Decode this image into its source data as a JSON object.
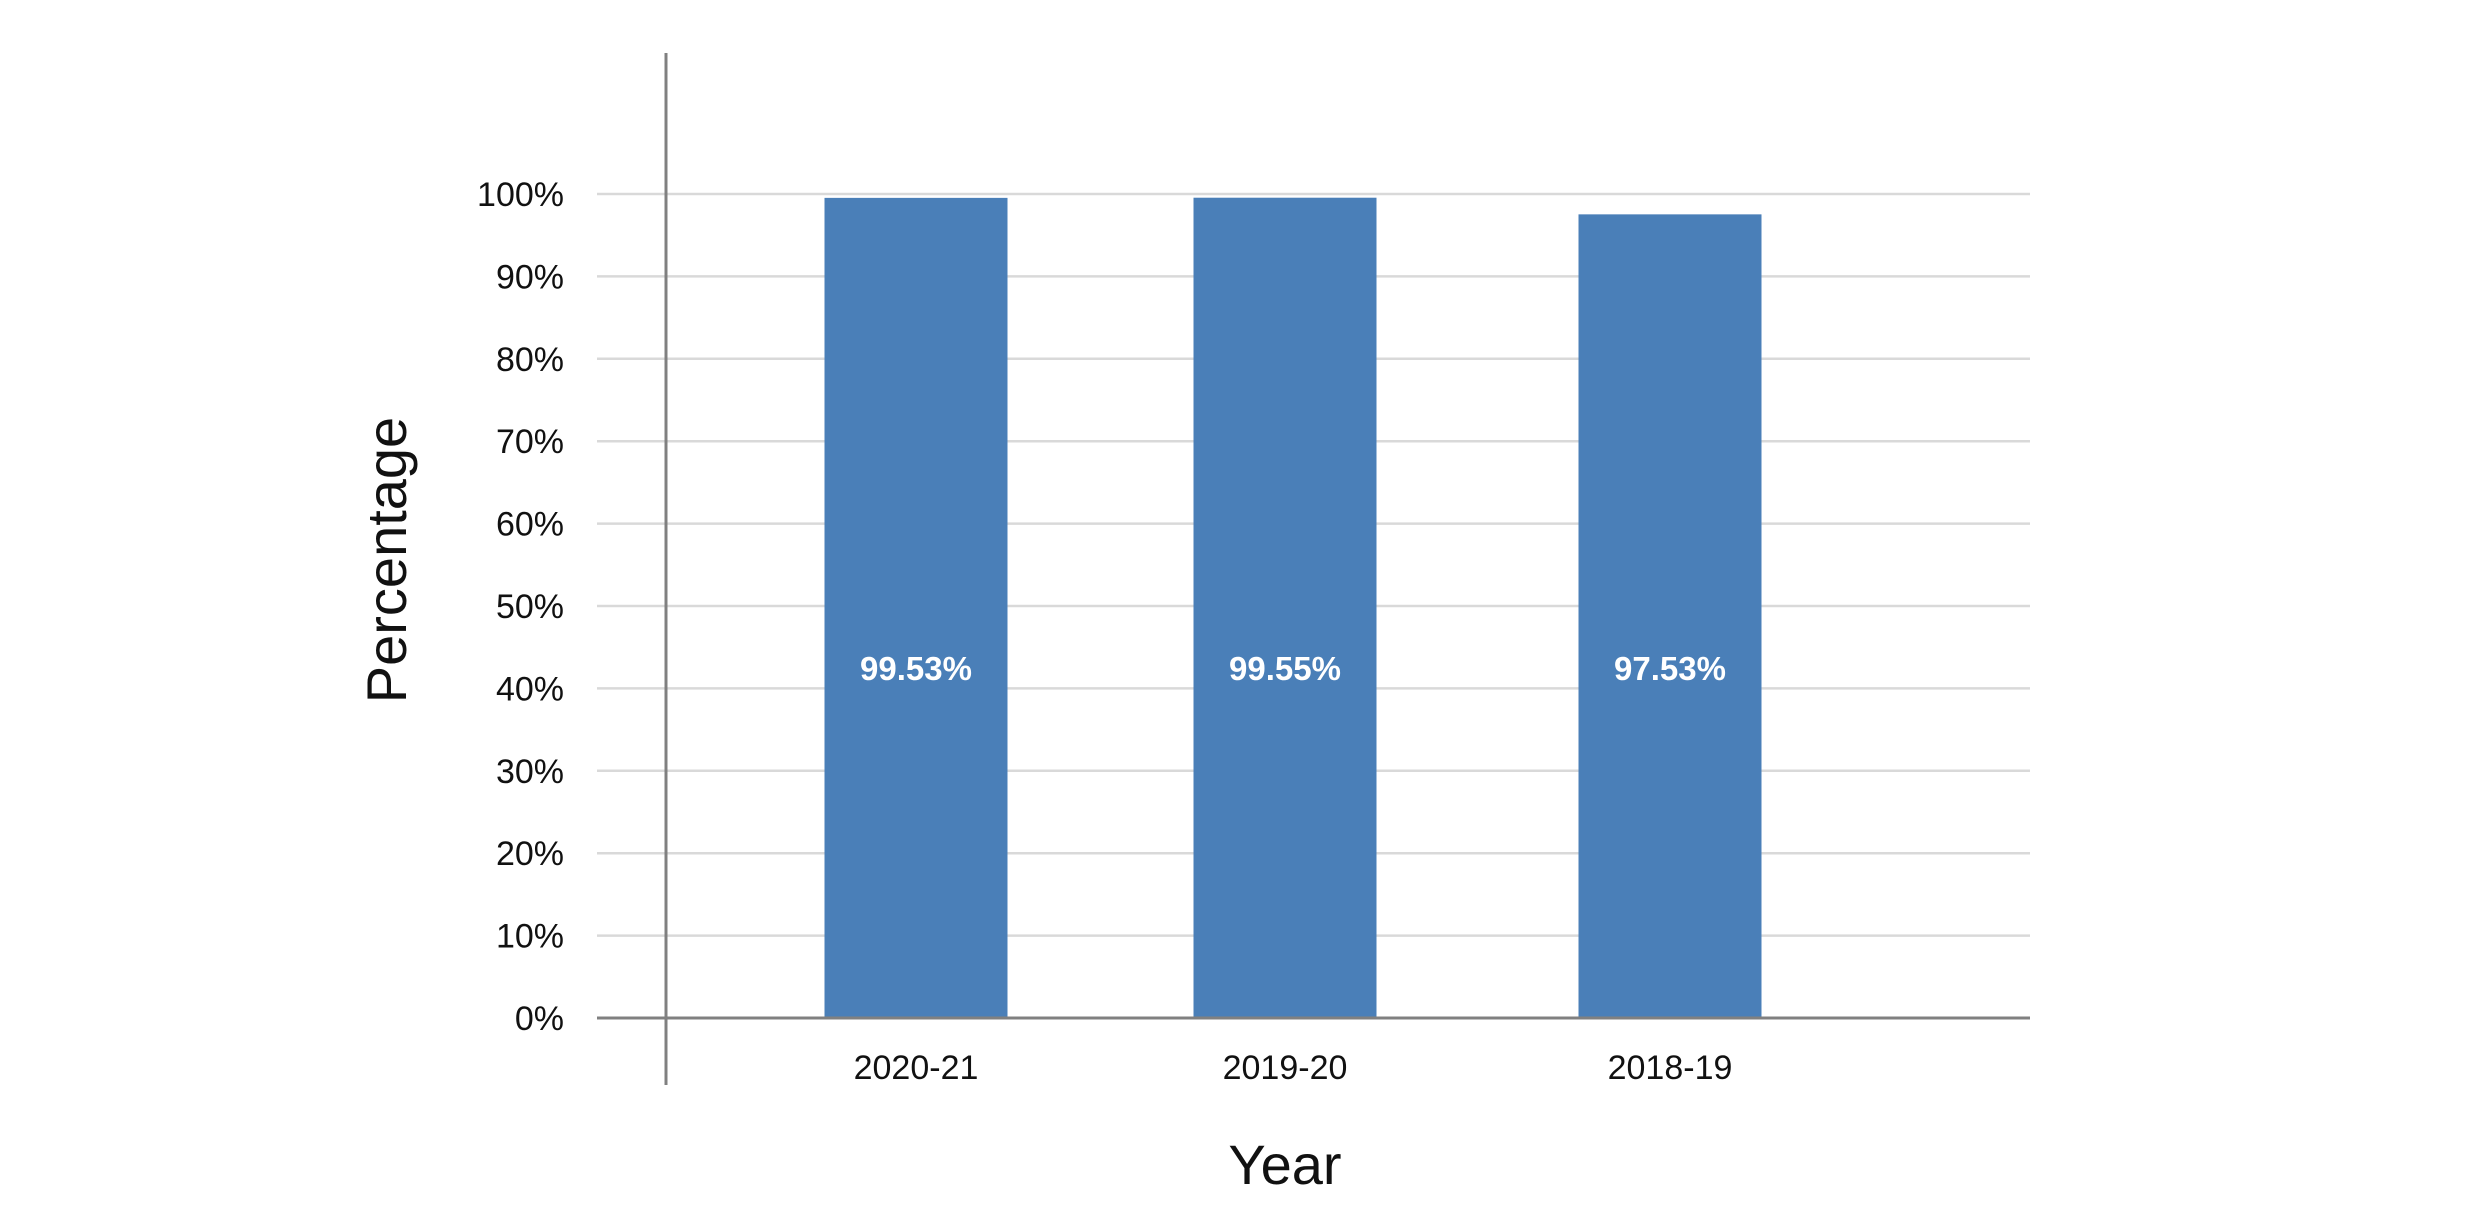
{
  "chart_data": {
    "type": "bar",
    "categories": [
      "2020-21",
      "2019-20",
      "2018-19"
    ],
    "series": [
      {
        "values": [
          99.53,
          99.55,
          97.53
        ],
        "data_labels": [
          "99.53%",
          "99.55%",
          "97.53%"
        ]
      }
    ],
    "xlabel": "Year",
    "ylabel": "Percentage",
    "ylim": [
      0,
      100
    ],
    "y_ticks": [
      0,
      10,
      20,
      30,
      40,
      50,
      60,
      70,
      80,
      90,
      100
    ],
    "y_tick_labels": [
      "0%",
      "10%",
      "20%",
      "30%",
      "40%",
      "50%",
      "60%",
      "70%",
      "80%",
      "90%",
      "100%"
    ],
    "grid": true,
    "legend": "none"
  },
  "colors": {
    "bar": "#4A7FB8",
    "grid": "#D9D9D9",
    "axis": "#808080"
  }
}
